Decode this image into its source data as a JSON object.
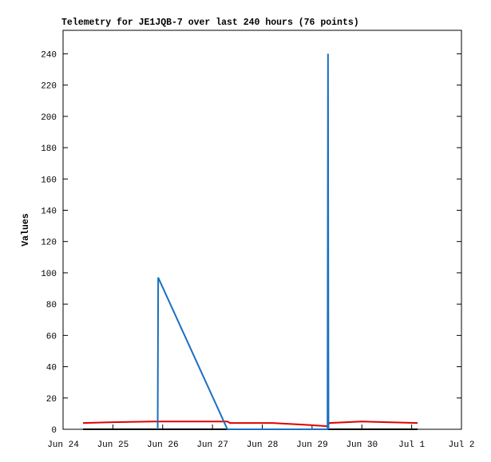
{
  "chart_data": {
    "type": "line",
    "title": "Telemetry for JE1JQB-7 over last 240 hours (76 points)",
    "y_label": "Values",
    "xlim": [
      0,
      8
    ],
    "xticks": [
      {
        "value": 0,
        "label": "Jun 24"
      },
      {
        "value": 1,
        "label": "Jun 25"
      },
      {
        "value": 2,
        "label": "Jun 26"
      },
      {
        "value": 3,
        "label": "Jun 27"
      },
      {
        "value": 4,
        "label": "Jun 28"
      },
      {
        "value": 5,
        "label": "Jun 29"
      },
      {
        "value": 6,
        "label": "Jun 30"
      },
      {
        "value": 7,
        "label": "Jul 1"
      },
      {
        "value": 8,
        "label": "Jul 2"
      }
    ],
    "ylim": [
      0,
      255
    ],
    "yticks": [
      0,
      20,
      40,
      60,
      80,
      100,
      120,
      140,
      160,
      180,
      200,
      220,
      240
    ],
    "series": [
      {
        "color": "#e00000",
        "x": [
          0.4,
          1.0,
          1.8,
          3.3,
          3.35,
          4.2,
          4.8,
          5.3,
          5.35,
          6.0,
          6.5,
          7.12
        ],
        "values": [
          4,
          4.5,
          5,
          5,
          4,
          4,
          3,
          2,
          4,
          5,
          4.5,
          4
        ]
      },
      {
        "color": "#000000",
        "x": [
          0.4,
          7.12
        ],
        "values": [
          0,
          0
        ]
      },
      {
        "color": "#1a6fbf",
        "x": [
          1.9,
          1.91,
          3.3,
          5.31,
          5.32,
          5.33
        ],
        "values": [
          0,
          97,
          0,
          0,
          240,
          0
        ]
      }
    ]
  }
}
